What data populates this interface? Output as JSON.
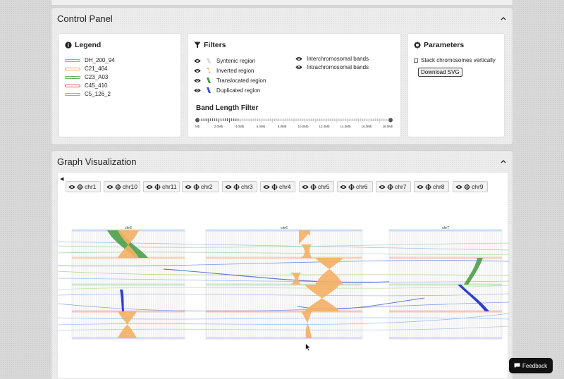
{
  "control_panel": {
    "title": "Control Panel"
  },
  "legend": {
    "title": "Legend",
    "items": [
      {
        "label": "DH_200_94",
        "color": "#7aa6e6"
      },
      {
        "label": "C21_464",
        "color": "#f4a35e"
      },
      {
        "label": "C23_A03",
        "color": "#5cb85c"
      },
      {
        "label": "C45_410",
        "color": "#e05a5a"
      },
      {
        "label": "C5_126_2",
        "color": "#a99be0"
      }
    ]
  },
  "filters": {
    "title": "Filters",
    "left_items": [
      {
        "label": "Syntenic region",
        "color": "#c9c9c9"
      },
      {
        "label": "Inverted region",
        "color": "#f4b063"
      },
      {
        "label": "Translocated region",
        "color": "#3f9a3f"
      },
      {
        "label": "Duplicated region",
        "color": "#3b4fd8"
      }
    ],
    "right_items": [
      {
        "label": "Interchromosomal bands"
      },
      {
        "label": "Intrachromosomal bands"
      }
    ],
    "band_length": {
      "title": "Band Length Filter",
      "ticks": [
        "Mb",
        "2.0Mb",
        "4.0Mb",
        "6.0Mb",
        "8.0Mb",
        "10.0Mb",
        "12.0Mb",
        "14.0Mb",
        "16.0Mb",
        "18.0Mb"
      ]
    }
  },
  "parameters": {
    "title": "Parameters",
    "stack_label": "Stack chromosomes vertically",
    "download_label": "Download SVG"
  },
  "graph": {
    "title": "Graph Visualization",
    "chromosomes": [
      "chr1",
      "chr10",
      "chr11",
      "chr2",
      "chr3",
      "chr4",
      "chr5",
      "chr6",
      "chr7",
      "chr8",
      "chr9"
    ],
    "labels": {
      "chr5": "chr5",
      "chr6": "chr6",
      "chr7": "chr7"
    }
  },
  "feedback_label": "Feedback"
}
